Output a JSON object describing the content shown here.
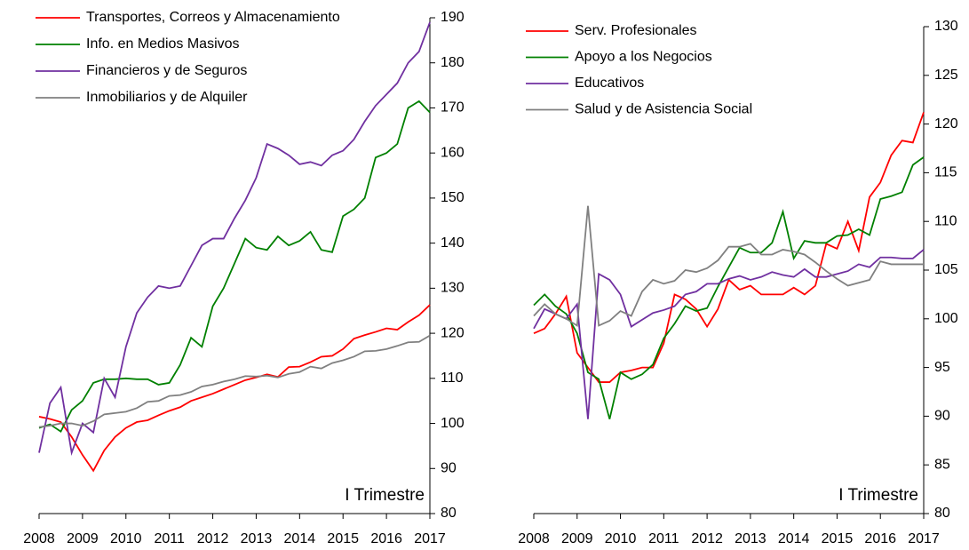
{
  "chart_data": [
    {
      "type": "line",
      "annotation": "I Trimestre",
      "x": [
        2008,
        2008.25,
        2008.5,
        2008.75,
        2009,
        2009.25,
        2009.5,
        2009.75,
        2010,
        2010.25,
        2010.5,
        2010.75,
        2011,
        2011.25,
        2011.5,
        2011.75,
        2012,
        2012.25,
        2012.5,
        2012.75,
        2013,
        2013.25,
        2013.5,
        2013.75,
        2014,
        2014.25,
        2014.5,
        2014.75,
        2015,
        2015.25,
        2015.5,
        2015.75,
        2016,
        2016.25,
        2016.5,
        2016.75,
        2017
      ],
      "xlim": [
        2008,
        2017
      ],
      "xticks": [
        2008,
        2009,
        2010,
        2011,
        2012,
        2013,
        2014,
        2015,
        2016,
        2017
      ],
      "ylim": [
        80,
        190
      ],
      "yticks": [
        80,
        90,
        100,
        110,
        120,
        130,
        140,
        150,
        160,
        170,
        180,
        190
      ],
      "series": [
        {
          "name": "Transportes, Correos y Almacenamiento",
          "color": "#ff0000",
          "values": [
            101.5,
            101,
            100.3,
            97,
            93,
            89.5,
            94,
            97,
            99,
            100.3,
            100.7,
            101.8,
            102.8,
            103.6,
            105,
            105.8,
            106.6,
            107.6,
            108.6,
            109.6,
            110.2,
            110.9,
            110.3,
            112.5,
            112.6,
            113.6,
            114.8,
            115,
            116.5,
            118.8,
            119.6,
            120.3,
            121.1,
            120.8,
            122.5,
            124,
            126.3
          ]
        },
        {
          "name": "Info. en Medios Masivos",
          "color": "#008000",
          "values": [
            99,
            99.8,
            98.2,
            103,
            105,
            109,
            109.8,
            109.8,
            110,
            109.8,
            109.8,
            108.6,
            109,
            113,
            119,
            117,
            126,
            130,
            135.5,
            141,
            139,
            138.5,
            141.5,
            139.5,
            140.5,
            142.5,
            138.5,
            138,
            146,
            147.5,
            150,
            159,
            160,
            162,
            170,
            171.5,
            169
          ]
        },
        {
          "name": "Financieros y de Seguros",
          "color": "#7030a0",
          "values": [
            93.5,
            104.5,
            108,
            93.5,
            100,
            98,
            110,
            105.8,
            117,
            124.5,
            128,
            130.5,
            130,
            130.5,
            135,
            139.5,
            141,
            141,
            145.5,
            149.5,
            154.5,
            162,
            161,
            159.5,
            157.5,
            158,
            157.2,
            159.5,
            160.5,
            163,
            167,
            170.5,
            173,
            175.5,
            180,
            182.5,
            189
          ]
        },
        {
          "name": "Inmobiliarios y de Alquiler",
          "color": "#808080",
          "values": [
            99.2,
            99.5,
            100,
            100,
            99.5,
            100.5,
            102,
            102.3,
            102.6,
            103.4,
            104.8,
            105,
            106.1,
            106.3,
            107,
            108.2,
            108.6,
            109.3,
            109.8,
            110.5,
            110.4,
            110.6,
            110.2,
            111,
            111.4,
            112.6,
            112.2,
            113.4,
            114,
            114.8,
            116,
            116.1,
            116.5,
            117.2,
            118,
            118.1,
            119.5
          ]
        }
      ]
    },
    {
      "type": "line",
      "annotation": "I Trimestre",
      "x": [
        2008,
        2008.25,
        2008.5,
        2008.75,
        2009,
        2009.25,
        2009.5,
        2009.75,
        2010,
        2010.25,
        2010.5,
        2010.75,
        2011,
        2011.25,
        2011.5,
        2011.75,
        2012,
        2012.25,
        2012.5,
        2012.75,
        2013,
        2013.25,
        2013.5,
        2013.75,
        2014,
        2014.25,
        2014.5,
        2014.75,
        2015,
        2015.25,
        2015.5,
        2015.75,
        2016,
        2016.25,
        2016.5,
        2016.75,
        2017
      ],
      "xlim": [
        2008,
        2017
      ],
      "xticks": [
        2008,
        2009,
        2010,
        2011,
        2012,
        2013,
        2014,
        2015,
        2016,
        2017
      ],
      "ylim": [
        80,
        130
      ],
      "yticks": [
        80,
        85,
        90,
        95,
        100,
        105,
        110,
        115,
        120,
        125,
        130
      ],
      "series": [
        {
          "name": "Serv. Profesionales",
          "color": "#ff0000",
          "values": [
            98.5,
            99,
            100.5,
            102.3,
            96.5,
            95,
            93.5,
            93.5,
            94.5,
            94.7,
            95,
            95,
            97.5,
            102.5,
            102,
            101,
            99.2,
            101,
            104,
            103,
            103.4,
            102.5,
            102.5,
            102.5,
            103.2,
            102.5,
            103.4,
            107.7,
            107.2,
            110,
            107,
            112.5,
            114,
            116.8,
            118.3,
            118.1,
            121.2
          ]
        },
        {
          "name": "Apoyo a los Negocios",
          "color": "#008000",
          "values": [
            101.4,
            102.5,
            101.3,
            100.5,
            98.5,
            94.5,
            93.8,
            89.7,
            94.5,
            93.8,
            94.3,
            95.3,
            98,
            99.5,
            101.3,
            100.8,
            101.1,
            103.3,
            105.3,
            107.3,
            106.8,
            106.8,
            107.8,
            111,
            106.2,
            108,
            107.8,
            107.8,
            108.5,
            108.6,
            109.2,
            108.6,
            112.3,
            112.6,
            113,
            115.8,
            116.6
          ]
        },
        {
          "name": "Educativos",
          "color": "#7030a0",
          "values": [
            99,
            101,
            100.5,
            100,
            101.5,
            89.7,
            104.6,
            104,
            102.5,
            99.2,
            99.9,
            100.6,
            100.9,
            101.3,
            102.5,
            102.8,
            103.6,
            103.6,
            104.1,
            104.4,
            104,
            104.3,
            104.8,
            104.5,
            104.3,
            105.1,
            104.3,
            104.3,
            104.6,
            104.9,
            105.6,
            105.3,
            106.3,
            106.3,
            106.2,
            106.2,
            107.1
          ]
        },
        {
          "name": "Salud y de Asistencia Social",
          "color": "#808080",
          "values": [
            100.3,
            101.5,
            100.5,
            100,
            99.3,
            111.6,
            99.3,
            99.8,
            100.8,
            100.3,
            102.8,
            104,
            103.6,
            103.9,
            105,
            104.8,
            105.2,
            106,
            107.4,
            107.4,
            107.7,
            106.6,
            106.6,
            107.1,
            106.9,
            106.6,
            105.8,
            104.9,
            104.1,
            103.4,
            103.7,
            104,
            105.9,
            105.6,
            105.6,
            105.6,
            105.6
          ]
        }
      ]
    }
  ]
}
